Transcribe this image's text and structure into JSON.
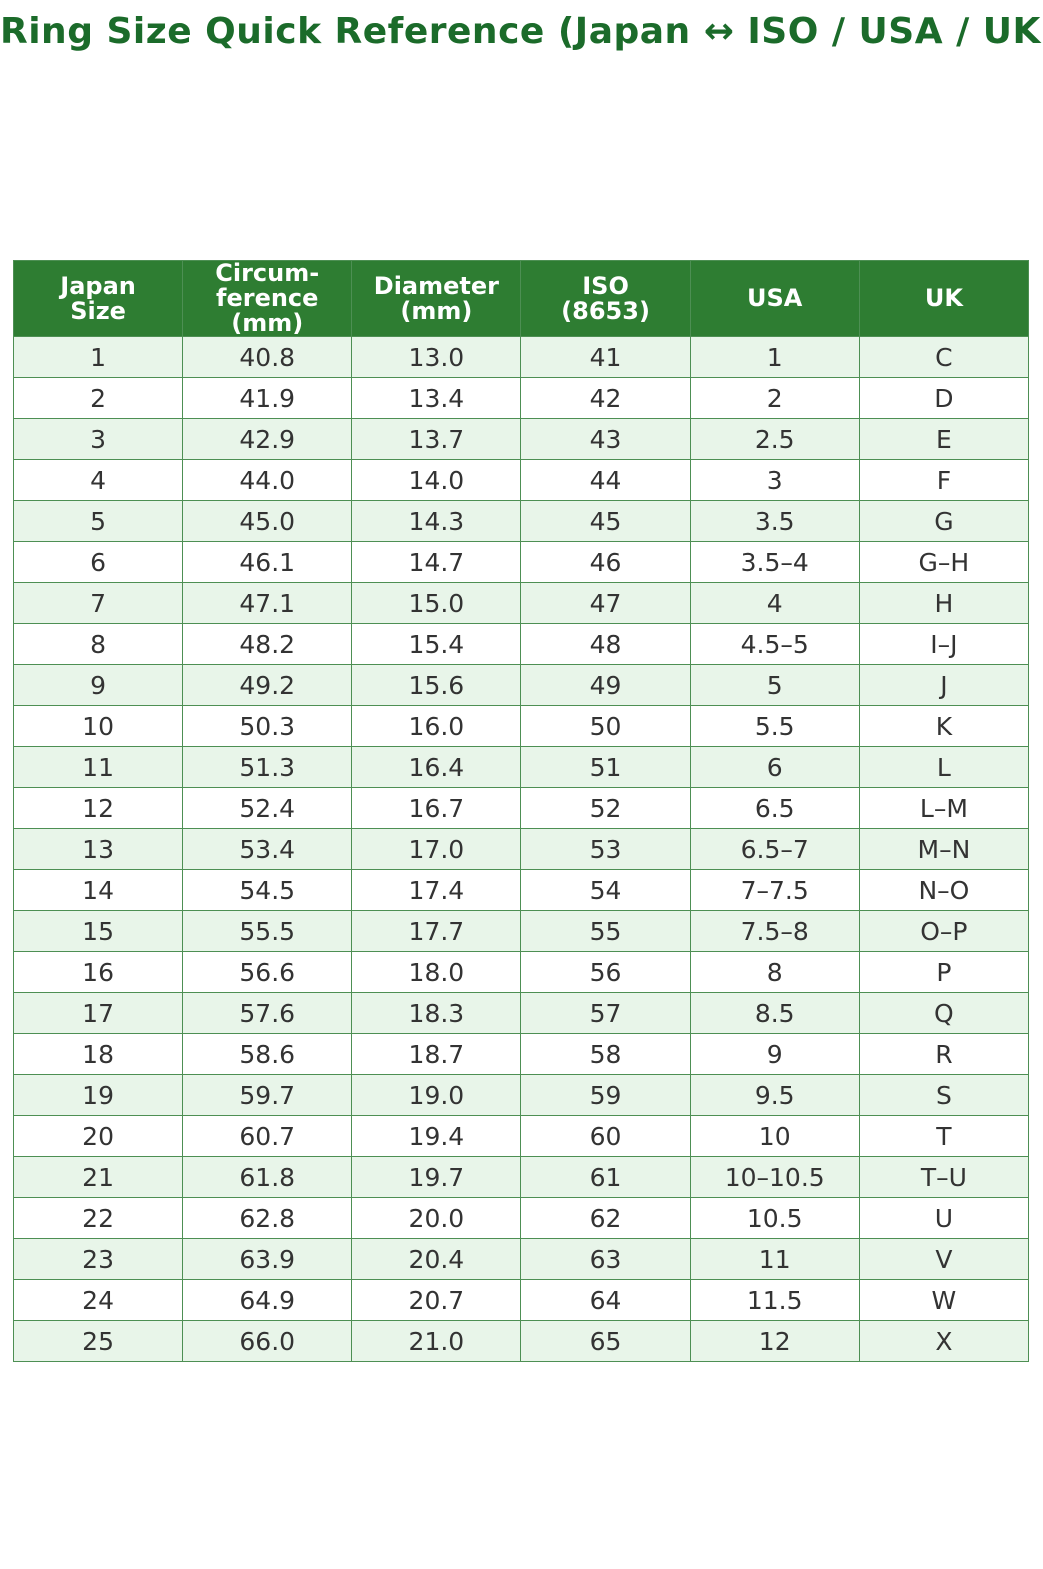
{
  "title": "Ring Size Quick Reference (Japan ↔ ISO / USA / UK)",
  "colors": {
    "title_color": "#1b6b2a",
    "header_bg": "#2e7d32",
    "header_text": "#ffffff",
    "row_bg": "#ffffff",
    "row_alt_bg": "#e8f5e9",
    "border_color": "#4d8f53",
    "cell_text": "#333333"
  },
  "table": {
    "columns": [
      "Japan\nSize",
      "Circum-\nference\n(mm)",
      "Diameter\n(mm)",
      "ISO\n(8653)",
      "USA",
      "UK"
    ],
    "rows": [
      [
        "1",
        "40.8",
        "13.0",
        "41",
        "1",
        "C"
      ],
      [
        "2",
        "41.9",
        "13.4",
        "42",
        "2",
        "D"
      ],
      [
        "3",
        "42.9",
        "13.7",
        "43",
        "2.5",
        "E"
      ],
      [
        "4",
        "44.0",
        "14.0",
        "44",
        "3",
        "F"
      ],
      [
        "5",
        "45.0",
        "14.3",
        "45",
        "3.5",
        "G"
      ],
      [
        "6",
        "46.1",
        "14.7",
        "46",
        "3.5–4",
        "G–H"
      ],
      [
        "7",
        "47.1",
        "15.0",
        "47",
        "4",
        "H"
      ],
      [
        "8",
        "48.2",
        "15.4",
        "48",
        "4.5–5",
        "I–J"
      ],
      [
        "9",
        "49.2",
        "15.6",
        "49",
        "5",
        "J"
      ],
      [
        "10",
        "50.3",
        "16.0",
        "50",
        "5.5",
        "K"
      ],
      [
        "11",
        "51.3",
        "16.4",
        "51",
        "6",
        "L"
      ],
      [
        "12",
        "52.4",
        "16.7",
        "52",
        "6.5",
        "L–M"
      ],
      [
        "13",
        "53.4",
        "17.0",
        "53",
        "6.5–7",
        "M–N"
      ],
      [
        "14",
        "54.5",
        "17.4",
        "54",
        "7–7.5",
        "N–O"
      ],
      [
        "15",
        "55.5",
        "17.7",
        "55",
        "7.5–8",
        "O–P"
      ],
      [
        "16",
        "56.6",
        "18.0",
        "56",
        "8",
        "P"
      ],
      [
        "17",
        "57.6",
        "18.3",
        "57",
        "8.5",
        "Q"
      ],
      [
        "18",
        "58.6",
        "18.7",
        "58",
        "9",
        "R"
      ],
      [
        "19",
        "59.7",
        "19.0",
        "59",
        "9.5",
        "S"
      ],
      [
        "20",
        "60.7",
        "19.4",
        "60",
        "10",
        "T"
      ],
      [
        "21",
        "61.8",
        "19.7",
        "61",
        "10–10.5",
        "T–U"
      ],
      [
        "22",
        "62.8",
        "20.0",
        "62",
        "10.5",
        "U"
      ],
      [
        "23",
        "63.9",
        "20.4",
        "63",
        "11",
        "V"
      ],
      [
        "24",
        "64.9",
        "20.7",
        "64",
        "11.5",
        "W"
      ],
      [
        "25",
        "66.0",
        "21.0",
        "65",
        "12",
        "X"
      ]
    ]
  }
}
